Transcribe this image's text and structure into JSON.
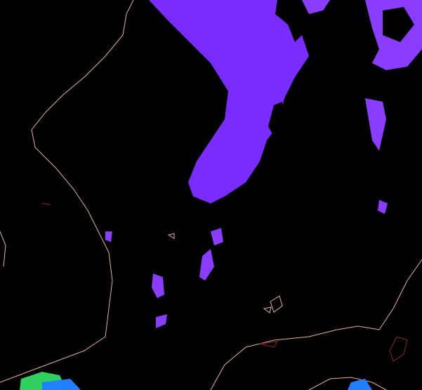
{
  "map": {
    "type": "satellite-imagery",
    "colors": {
      "background": "#000000",
      "cloud": "#7a2cff",
      "cloud_bright": "#8a3cff",
      "cloud_blue": "#5a3cff",
      "coastline": "#e8b0a0",
      "border": "#8a2a1a",
      "surface_green": "#30d060",
      "surface_blue": "#2080ff"
    }
  }
}
